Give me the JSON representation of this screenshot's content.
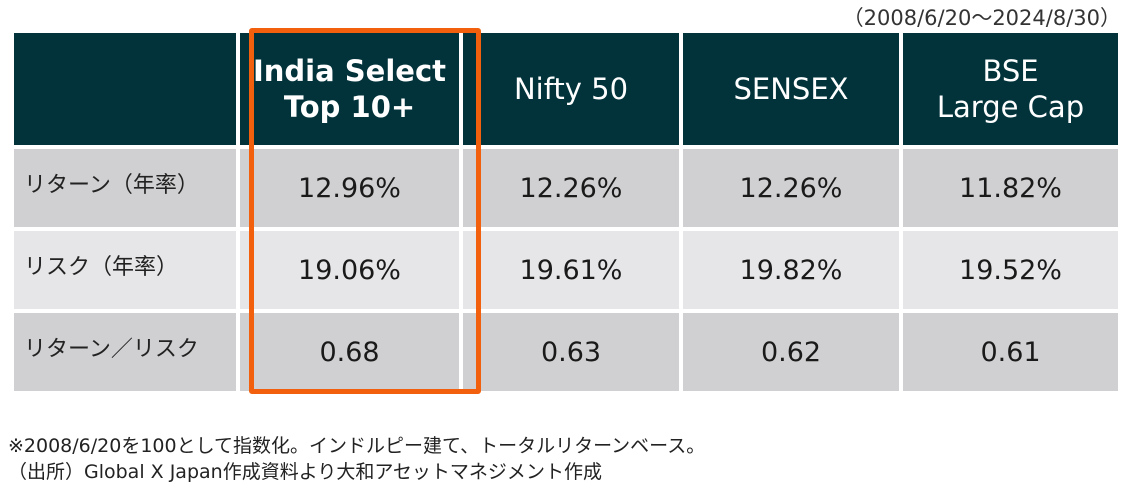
{
  "period": "（2008/6/20～2024/8/30）",
  "chart_data": {
    "type": "table",
    "columns": [
      "India Select Top 10+",
      "Nifty 50",
      "SENSEX",
      "BSE Large Cap"
    ],
    "column_headers": [
      {
        "line1": "India Select",
        "line2": "Top 10+"
      },
      {
        "line1": "Nifty 50",
        "line2": ""
      },
      {
        "line1": "SENSEX",
        "line2": ""
      },
      {
        "line1": "BSE",
        "line2": "Large Cap"
      }
    ],
    "highlighted_column": "India Select Top 10+",
    "highlight_color": "#f2600d",
    "header_color": "#02333b",
    "rows": [
      {
        "label": "リターン（年率）",
        "values": [
          12.96,
          12.26,
          12.26,
          11.82
        ],
        "display": [
          "12.96%",
          "12.26%",
          "12.26%",
          "11.82%"
        ]
      },
      {
        "label": "リスク（年率）",
        "values": [
          19.06,
          19.61,
          19.82,
          19.52
        ],
        "display": [
          "19.06%",
          "19.61%",
          "19.82%",
          "19.52%"
        ]
      },
      {
        "label": "リターン／リスク",
        "values": [
          0.68,
          0.63,
          0.62,
          0.61
        ],
        "display": [
          "0.68",
          "0.63",
          "0.62",
          "0.61"
        ]
      }
    ]
  },
  "notes": [
    "※2008/6/20を100として指数化。インドルピー建て、トータルリターンベース。",
    "（出所）Global X Japan作成資料より大和アセットマネジメント作成"
  ]
}
